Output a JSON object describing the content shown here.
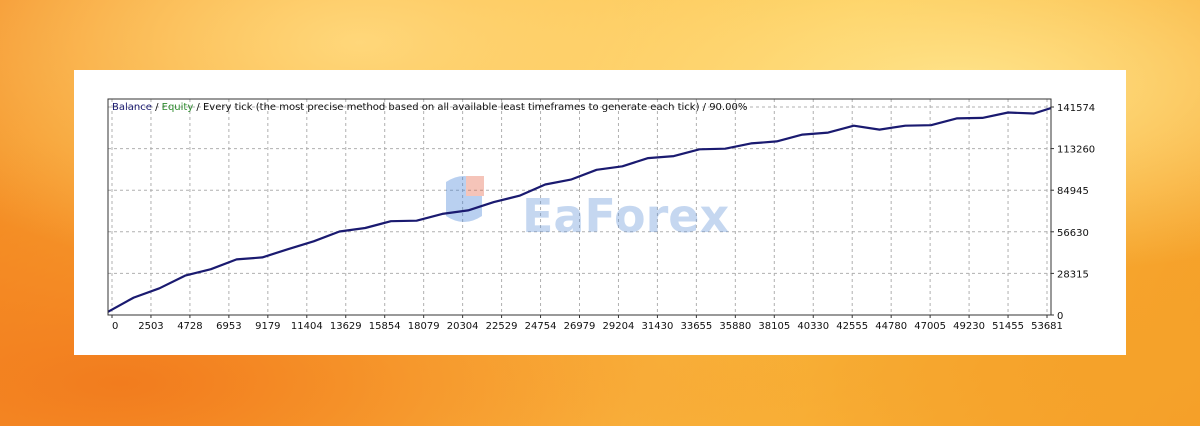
{
  "chart_data": {
    "type": "line",
    "legend": {
      "balance_label": "Balance",
      "separator": " / ",
      "equity_label": "Equity",
      "description": " / Every tick (the most precise method based on all available least timeframes to generate each tick) / 90.00%"
    },
    "x_ticks": [
      "0",
      "2503",
      "4728",
      "6953",
      "9179",
      "11404",
      "13629",
      "15854",
      "18079",
      "20304",
      "22529",
      "24754",
      "26979",
      "29204",
      "31430",
      "33655",
      "35880",
      "38105",
      "40330",
      "42555",
      "44780",
      "47005",
      "49230",
      "51455",
      "53681"
    ],
    "y_ticks": [
      "0",
      "28315",
      "56630",
      "84945",
      "113260",
      "141574"
    ],
    "xlim": [
      0,
      55000
    ],
    "ylim": [
      0,
      141574
    ],
    "grid": true,
    "colors": {
      "balance": "#1a1a70",
      "equity": "#2e8b2e",
      "grid": "#b0b0b0"
    },
    "series": [
      {
        "name": "Balance",
        "x": [
          0,
          1500,
          3000,
          4500,
          6000,
          7500,
          9000,
          10500,
          12000,
          13500,
          15000,
          16500,
          18000,
          19500,
          21000,
          22500,
          24000,
          25500,
          27000,
          28500,
          30000,
          31500,
          33000,
          34500,
          36000,
          37500,
          39000,
          40500,
          42000,
          43500,
          45000,
          46500,
          48000,
          49500,
          51000,
          52500,
          54000,
          55000
        ],
        "y": [
          3000,
          11000,
          19000,
          26000,
          32000,
          37000,
          40000,
          44000,
          51000,
          56000,
          60000,
          63000,
          65000,
          68000,
          72000,
          76000,
          82000,
          88000,
          93000,
          98000,
          102000,
          106000,
          109000,
          112000,
          114000,
          116000,
          119000,
          122000,
          125000,
          128000,
          127000,
          128000,
          130000,
          133000,
          135000,
          137000,
          138000,
          140000
        ]
      }
    ],
    "watermark": "EaForex"
  }
}
